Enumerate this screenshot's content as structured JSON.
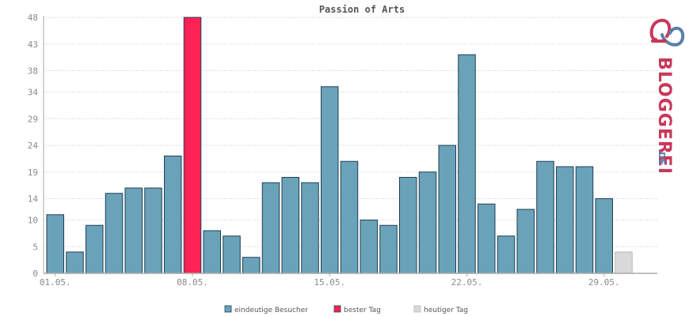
{
  "chart_data": {
    "type": "bar",
    "title": "Passion of Arts",
    "y_ticks": [
      "0",
      "5",
      "10",
      "14",
      "19",
      "24",
      "29",
      "34",
      "38",
      "43",
      "48"
    ],
    "ylim": [
      0,
      48
    ],
    "x_tick_labels": [
      {
        "label": "01.05.",
        "index": 0
      },
      {
        "label": "08.05.",
        "index": 7
      },
      {
        "label": "15.05.",
        "index": 14
      },
      {
        "label": "22.05.",
        "index": 21
      },
      {
        "label": "29.05.",
        "index": 28
      }
    ],
    "values": [
      11,
      4,
      9,
      15,
      16,
      16,
      22,
      48,
      8,
      7,
      3,
      17,
      18,
      17,
      35,
      21,
      10,
      9,
      18,
      19,
      24,
      41,
      13,
      7,
      12,
      21,
      20,
      20,
      14,
      4
    ],
    "bar_kinds": [
      "normal",
      "normal",
      "normal",
      "normal",
      "normal",
      "normal",
      "normal",
      "best",
      "normal",
      "normal",
      "normal",
      "normal",
      "normal",
      "normal",
      "normal",
      "normal",
      "normal",
      "normal",
      "normal",
      "normal",
      "normal",
      "normal",
      "normal",
      "normal",
      "normal",
      "normal",
      "normal",
      "normal",
      "normal",
      "today"
    ],
    "grid": true,
    "legend": [
      {
        "label": "eindeutige Besucher",
        "color": "#6aa2ba"
      },
      {
        "label": "bester Tag",
        "color": "#ff2255"
      },
      {
        "label": "heutiger Tag",
        "color": "#d9d9d9"
      }
    ],
    "legend_position": "bottom"
  },
  "colors": {
    "normal": "#6aa2ba",
    "best": "#ff2255",
    "today": "#d9d9d9",
    "logo_red": "#c8385a",
    "logo_blue": "#5a7fa8"
  },
  "logo": {
    "brand": "BLOGGEREI",
    "suffix": ".DE"
  }
}
